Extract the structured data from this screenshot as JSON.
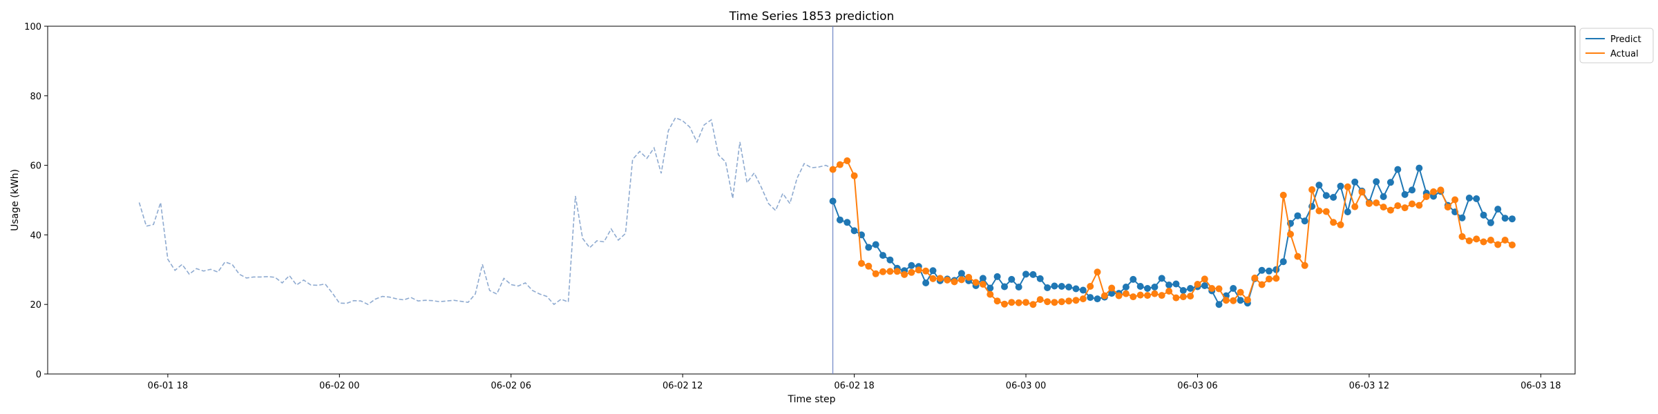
{
  "chart_data": {
    "type": "line",
    "title": "Time Series 1853 prediction",
    "xlabel": "Time step",
    "ylabel": "Usage (kWh)",
    "ylim": [
      0,
      100
    ],
    "yticks": [
      0,
      20,
      40,
      60,
      80,
      100
    ],
    "xlim": [
      "2023-06-01T13:48",
      "2023-06-03T19:12"
    ],
    "xticks": [
      {
        "t": "2023-06-01T18:00",
        "label": "06-01 18"
      },
      {
        "t": "2023-06-02T00:00",
        "label": "06-02 00"
      },
      {
        "t": "2023-06-02T06:00",
        "label": "06-02 06"
      },
      {
        "t": "2023-06-02T12:00",
        "label": "06-02 12"
      },
      {
        "t": "2023-06-02T18:00",
        "label": "06-02 18"
      },
      {
        "t": "2023-06-03T00:00",
        "label": "06-03 00"
      },
      {
        "t": "2023-06-03T06:00",
        "label": "06-03 06"
      },
      {
        "t": "2023-06-03T12:00",
        "label": "06-03 12"
      },
      {
        "t": "2023-06-03T18:00",
        "label": "06-03 18"
      }
    ],
    "split_time": "2023-06-02T17:15",
    "legend_position": "upper-right-outside",
    "grid": false,
    "history": {
      "start": "2023-06-01T17:00",
      "step_minutes": 15,
      "color": "#8eaad0",
      "style": "dashed",
      "values": [
        49.3,
        42.5,
        43.0,
        49.3,
        33.0,
        29.8,
        31.5,
        28.7,
        30.3,
        29.6,
        30.1,
        29.3,
        32.2,
        31.5,
        28.7,
        27.6,
        27.9,
        27.9,
        28.0,
        27.8,
        26.2,
        28.3,
        25.6,
        27.0,
        25.6,
        25.5,
        25.9,
        23.3,
        20.4,
        20.3,
        21.1,
        21.0,
        20.0,
        21.5,
        22.3,
        22.1,
        21.6,
        21.3,
        22.0,
        21.0,
        21.2,
        21.1,
        20.8,
        21.0,
        21.2,
        20.9,
        20.6,
        23.0,
        31.5,
        24.0,
        23.0,
        27.5,
        25.7,
        25.3,
        26.2,
        24.0,
        23.0,
        22.3,
        20.0,
        21.5,
        20.7,
        51.2,
        39.0,
        36.3,
        38.3,
        38.0,
        41.7,
        38.5,
        40.4,
        61.7,
        64.0,
        62.0,
        65.0,
        57.7,
        70.0,
        73.7,
        72.8,
        71.0,
        66.7,
        71.6,
        73.1,
        63.0,
        61.0,
        50.5,
        66.7,
        55.0,
        57.8,
        53.7,
        49.0,
        47.0,
        51.9,
        49.0,
        56.3,
        60.5,
        59.3,
        59.5,
        60.0,
        59.1
      ]
    },
    "series": [
      {
        "name": "Predict",
        "color": "#1f77b4",
        "start": "2023-06-02T17:15",
        "step_minutes": 15,
        "values": [
          49.7,
          44.3,
          43.6,
          41.2,
          40.0,
          36.4,
          37.2,
          34.1,
          32.8,
          30.4,
          29.7,
          31.2,
          30.9,
          26.2,
          29.7,
          26.8,
          27.3,
          26.9,
          28.9,
          26.8,
          25.4,
          27.5,
          24.7,
          28.0,
          25.1,
          27.2,
          25.0,
          28.7,
          28.6,
          27.4,
          24.8,
          25.3,
          25.2,
          25.0,
          24.5,
          24.1,
          22.0,
          21.6,
          22.1,
          23.2,
          23.2,
          25.0,
          27.2,
          25.2,
          24.6,
          25.0,
          27.5,
          25.6,
          25.9,
          24.0,
          24.6,
          25.1,
          25.4,
          23.9,
          20.0,
          22.5,
          24.6,
          21.2,
          20.4,
          27.4,
          29.8,
          29.6,
          30.0,
          32.3,
          43.3,
          45.5,
          44.0,
          48.2,
          54.3,
          51.3,
          50.8,
          54.0,
          46.6,
          55.2,
          52.6,
          49.3,
          55.3,
          51.0,
          55.1,
          58.8,
          51.6,
          52.9,
          59.2,
          52.0,
          51.1,
          52.5,
          48.5,
          46.6,
          44.9,
          50.6,
          50.4,
          45.7,
          43.5,
          47.4,
          44.8,
          44.6
        ]
      },
      {
        "name": "Actual",
        "color": "#ff7f0e",
        "start": "2023-06-02T17:15",
        "step_minutes": 15,
        "values": [
          58.8,
          60.2,
          61.3,
          57.0,
          31.8,
          31.0,
          28.8,
          29.4,
          29.5,
          29.5,
          28.6,
          29.2,
          29.9,
          29.6,
          27.4,
          27.5,
          27.0,
          26.5,
          27.1,
          27.8,
          26.3,
          25.8,
          22.9,
          21.0,
          20.1,
          20.6,
          20.5,
          20.6,
          20.0,
          21.4,
          20.8,
          20.6,
          20.8,
          21.0,
          21.2,
          21.6,
          25.2,
          29.3,
          22.5,
          24.7,
          22.5,
          23.1,
          22.2,
          22.7,
          22.6,
          23.1,
          22.6,
          23.8,
          21.9,
          22.2,
          22.4,
          25.8,
          27.3,
          24.6,
          24.5,
          21.2,
          21.1,
          23.5,
          21.3,
          27.6,
          25.7,
          27.3,
          27.5,
          51.4,
          40.2,
          33.8,
          31.2,
          53.0,
          46.9,
          46.7,
          43.6,
          42.9,
          53.8,
          48.1,
          52.3,
          49.0,
          49.2,
          48.0,
          47.1,
          48.4,
          47.8,
          48.9,
          48.5,
          51.0,
          52.4,
          52.9,
          48.0,
          50.1,
          39.5,
          38.3,
          38.8,
          38.0,
          38.5,
          37.2,
          38.5,
          37.1
        ]
      }
    ]
  }
}
